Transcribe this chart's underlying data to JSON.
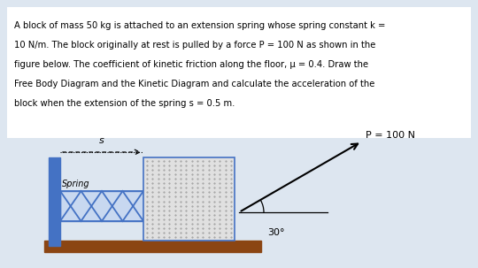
{
  "bg_color": "#dde6f0",
  "text_color": "#000000",
  "paragraph_lines": [
    "A block of mass 50 kg is attached to an extension spring whose spring constant k =",
    "10 N/m. The block originally at rest is pulled by a force P = 100 N as shown in the",
    "figure below. The coefficient of kinetic friction along the floor, μ = 0.4. Draw the",
    "Free Body Diagram and the Kinetic Diagram and calculate the acceleration of the",
    "block when the extension of the spring s = 0.5 m."
  ],
  "wall_color": "#4472c4",
  "spring_color": "#4472c4",
  "spring_bg_color": "#c8d8f0",
  "block_edge_color": "#4472c4",
  "block_face_color": "#e0e0e0",
  "floor_color": "#8B4513",
  "dot_color": "#999999",
  "force_label": "P = 100 N",
  "spring_label": "Spring",
  "angle_label": "30°",
  "s_label": "s"
}
